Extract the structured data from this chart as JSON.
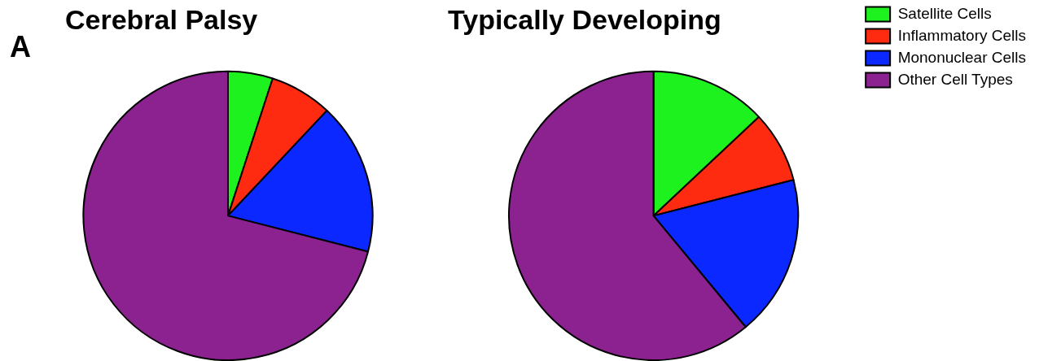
{
  "chart_data": [
    {
      "type": "pie",
      "title": "Cerebral Palsy",
      "categories": [
        null,
        null,
        null,
        null
      ],
      "values": [
        5,
        7,
        17,
        71
      ],
      "colors": [
        "#1ef21e",
        "#ff2b10",
        "#0a28ff",
        "#8c2290"
      ],
      "legend": false,
      "annotations": [
        "A"
      ]
    },
    {
      "type": "pie",
      "title": "Typically Developing",
      "categories": [
        "Satellite Cells",
        "Inflammatory Cells",
        "Mononuclear Cells",
        "Other Cell Types"
      ],
      "values": [
        13,
        8,
        18,
        61
      ],
      "colors": [
        "#1ef21e",
        "#ff2b10",
        "#0a28ff",
        "#8c2290"
      ],
      "legend": "right"
    }
  ]
}
